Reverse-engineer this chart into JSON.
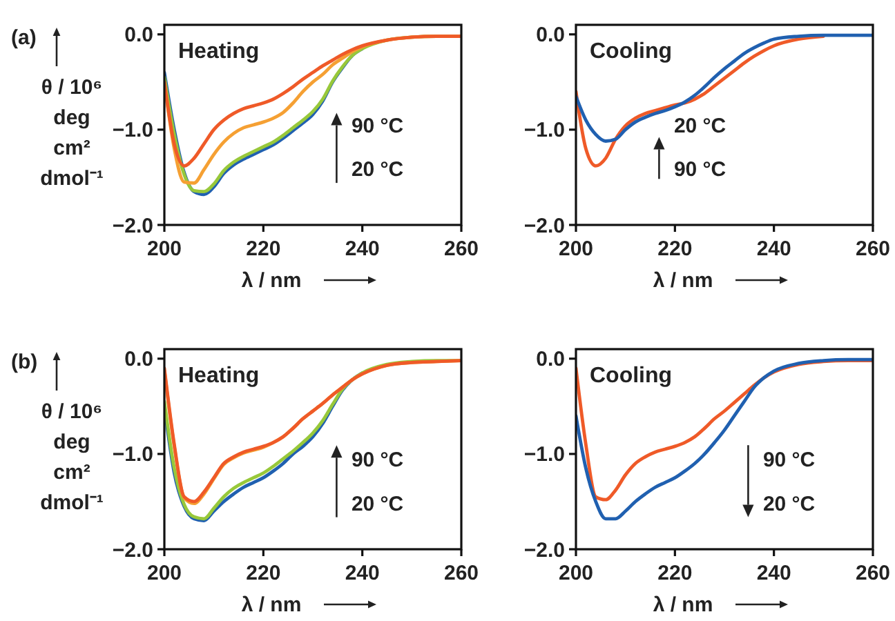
{
  "chart_data": [
    {
      "type": "line",
      "title": "(a)",
      "ylabel": "θ / 10⁶\ndeg\ncm²\ndmol⁻¹",
      "xlabel": "λ / nm",
      "annotations": [
        "Heating",
        "90 °C",
        "20 °C"
      ],
      "xlim": [
        200,
        260
      ],
      "xticks": [
        200,
        220,
        240,
        260
      ],
      "ylim": [
        -2.0,
        0.1
      ],
      "yticks": [
        {
          "value": 0,
          "label": "0.0"
        },
        {
          "value": -1,
          "label": "−1.0"
        },
        {
          "value": -2,
          "label": "−2.0"
        }
      ],
      "grid": false,
      "line_style": "solid",
      "marker": "none",
      "x": [
        200,
        202,
        204,
        206,
        208,
        210,
        212,
        214,
        216,
        218,
        220,
        222,
        224,
        226,
        228,
        230,
        232,
        234,
        236,
        238,
        240,
        245,
        250,
        255,
        260
      ],
      "series": [
        {
          "color": "#2060b0",
          "values": [
            -0.4,
            -1.0,
            -1.45,
            -1.65,
            -1.68,
            -1.6,
            -1.46,
            -1.37,
            -1.31,
            -1.26,
            -1.21,
            -1.16,
            -1.09,
            -1.01,
            -0.93,
            -0.84,
            -0.7,
            -0.5,
            -0.35,
            -0.22,
            -0.15,
            null,
            null,
            null,
            null
          ]
        },
        {
          "color": "#98c83a",
          "values": [
            -0.45,
            -1.05,
            -1.47,
            -1.64,
            -1.65,
            -1.57,
            -1.43,
            -1.34,
            -1.28,
            -1.23,
            -1.18,
            -1.13,
            -1.06,
            -0.98,
            -0.9,
            -0.81,
            -0.68,
            -0.49,
            -0.34,
            -0.22,
            -0.15,
            -0.06,
            -0.03,
            -0.02,
            -0.02
          ]
        },
        {
          "color": "#f5a033",
          "values": [
            -0.5,
            -1.2,
            -1.55,
            -1.56,
            -1.42,
            -1.26,
            -1.13,
            -1.04,
            -0.98,
            -0.95,
            -0.92,
            -0.88,
            -0.82,
            -0.72,
            -0.6,
            -0.5,
            -0.42,
            -0.32,
            -0.25,
            -0.18,
            -0.13,
            -0.06,
            -0.03,
            -0.02,
            -0.02
          ]
        },
        {
          "color": "#ef5a28",
          "values": [
            -0.5,
            -1.15,
            -1.38,
            -1.3,
            -1.15,
            -1.0,
            -0.9,
            -0.83,
            -0.78,
            -0.75,
            -0.72,
            -0.68,
            -0.62,
            -0.55,
            -0.47,
            -0.4,
            -0.33,
            -0.27,
            -0.21,
            -0.16,
            -0.12,
            -0.06,
            -0.03,
            -0.02,
            -0.02
          ]
        }
      ]
    },
    {
      "type": "line",
      "xlabel": "λ / nm",
      "annotations": [
        "Cooling",
        "20 °C",
        "90 °C"
      ],
      "xlim": [
        200,
        260
      ],
      "xticks": [
        200,
        220,
        240,
        260
      ],
      "ylim": [
        -2.0,
        0.1
      ],
      "yticks": [
        {
          "value": 0,
          "label": "0.0"
        },
        {
          "value": -1,
          "label": "−1.0"
        },
        {
          "value": -2,
          "label": "−2.0"
        }
      ],
      "grid": false,
      "line_style": "solid",
      "marker": "none",
      "x": [
        200,
        202,
        204,
        206,
        208,
        210,
        212,
        214,
        216,
        218,
        220,
        222,
        224,
        226,
        228,
        230,
        232,
        234,
        236,
        238,
        240,
        245,
        250,
        255,
        260
      ],
      "series": [
        {
          "color": "#ef5a28",
          "values": [
            -0.6,
            -1.2,
            -1.38,
            -1.3,
            -1.1,
            -0.96,
            -0.88,
            -0.83,
            -0.8,
            -0.77,
            -0.74,
            -0.72,
            -0.68,
            -0.62,
            -0.54,
            -0.46,
            -0.38,
            -0.3,
            -0.23,
            -0.17,
            -0.12,
            -0.05,
            -0.02,
            null,
            null
          ]
        },
        {
          "color": "#2060b0",
          "values": [
            -0.65,
            -0.9,
            -1.05,
            -1.12,
            -1.1,
            -1.0,
            -0.92,
            -0.87,
            -0.83,
            -0.8,
            -0.76,
            -0.71,
            -0.64,
            -0.55,
            -0.45,
            -0.36,
            -0.28,
            -0.2,
            -0.14,
            -0.09,
            -0.05,
            -0.02,
            -0.01,
            -0.01,
            -0.01
          ]
        }
      ]
    },
    {
      "type": "line",
      "title": "(b)",
      "ylabel": "θ / 10⁶\ndeg\ncm²\ndmol⁻¹",
      "xlabel": "λ / nm",
      "annotations": [
        "Heating",
        "90 °C",
        "20 °C"
      ],
      "xlim": [
        200,
        260
      ],
      "xticks": [
        200,
        220,
        240,
        260
      ],
      "ylim": [
        -2.0,
        0.1
      ],
      "yticks": [
        {
          "value": 0,
          "label": "0.0"
        },
        {
          "value": -1,
          "label": "−1.0"
        },
        {
          "value": -2,
          "label": "−2.0"
        }
      ],
      "grid": false,
      "line_style": "solid",
      "marker": "none",
      "x": [
        200,
        202,
        204,
        206,
        208,
        210,
        212,
        214,
        216,
        218,
        220,
        222,
        224,
        226,
        228,
        230,
        232,
        234,
        236,
        238,
        240,
        245,
        250,
        255,
        260
      ],
      "series": [
        {
          "color": "#2060b0",
          "values": [
            -0.5,
            -1.2,
            -1.55,
            -1.68,
            -1.7,
            -1.6,
            -1.5,
            -1.42,
            -1.35,
            -1.3,
            -1.25,
            -1.18,
            -1.1,
            -1.0,
            -0.92,
            -0.82,
            -0.68,
            -0.5,
            -0.33,
            -0.22,
            -0.15,
            null,
            null,
            null,
            null
          ]
        },
        {
          "color": "#98c83a",
          "values": [
            -0.45,
            -1.15,
            -1.53,
            -1.66,
            -1.68,
            -1.57,
            -1.45,
            -1.36,
            -1.3,
            -1.25,
            -1.2,
            -1.13,
            -1.05,
            -0.97,
            -0.88,
            -0.78,
            -0.65,
            -0.48,
            -0.32,
            -0.22,
            -0.15,
            -0.06,
            -0.03,
            -0.02,
            -0.02
          ]
        },
        {
          "color": "#f5a033",
          "values": [
            -0.12,
            -0.92,
            -1.46,
            -1.52,
            -1.42,
            -1.26,
            -1.11,
            -1.04,
            -0.99,
            -0.96,
            -0.93,
            -0.88,
            -0.82,
            -0.73,
            -0.63,
            -0.55,
            -0.47,
            -0.38,
            -0.3,
            -0.22,
            -0.16,
            -0.07,
            -0.04,
            -0.03,
            -0.02
          ]
        },
        {
          "color": "#ef5a28",
          "values": [
            -0.1,
            -0.9,
            -1.45,
            -1.5,
            -1.4,
            -1.25,
            -1.1,
            -1.03,
            -0.98,
            -0.95,
            -0.92,
            -0.88,
            -0.82,
            -0.73,
            -0.63,
            -0.55,
            -0.47,
            -0.38,
            -0.3,
            -0.22,
            -0.16,
            -0.07,
            -0.04,
            -0.03,
            -0.02
          ]
        }
      ]
    },
    {
      "type": "line",
      "xlabel": "λ / nm",
      "annotations": [
        "Cooling",
        "90 °C",
        "20 °C"
      ],
      "xlim": [
        200,
        260
      ],
      "xticks": [
        200,
        220,
        240,
        260
      ],
      "ylim": [
        -2.0,
        0.1
      ],
      "yticks": [
        {
          "value": 0,
          "label": "0.0"
        },
        {
          "value": -1,
          "label": "−1.0"
        },
        {
          "value": -2,
          "label": "−2.0"
        }
      ],
      "grid": false,
      "line_style": "solid",
      "marker": "none",
      "x": [
        200,
        202,
        204,
        206,
        208,
        210,
        212,
        214,
        216,
        218,
        220,
        222,
        224,
        226,
        228,
        230,
        232,
        234,
        236,
        238,
        240,
        245,
        250,
        255,
        260
      ],
      "series": [
        {
          "color": "#ef5a28",
          "values": [
            -0.1,
            -0.9,
            -1.45,
            -1.48,
            -1.38,
            -1.22,
            -1.1,
            -1.03,
            -0.98,
            -0.95,
            -0.92,
            -0.88,
            -0.82,
            -0.73,
            -0.63,
            -0.55,
            -0.46,
            -0.37,
            -0.28,
            -0.2,
            -0.14,
            -0.06,
            -0.03,
            -0.02,
            -0.02
          ]
        },
        {
          "color": "#2060b0",
          "values": [
            -0.6,
            -1.15,
            -1.5,
            -1.68,
            -1.68,
            -1.6,
            -1.5,
            -1.42,
            -1.35,
            -1.3,
            -1.25,
            -1.18,
            -1.1,
            -1.0,
            -0.88,
            -0.75,
            -0.6,
            -0.45,
            -0.3,
            -0.2,
            -0.13,
            -0.05,
            -0.02,
            -0.01,
            -0.01
          ]
        }
      ]
    }
  ]
}
